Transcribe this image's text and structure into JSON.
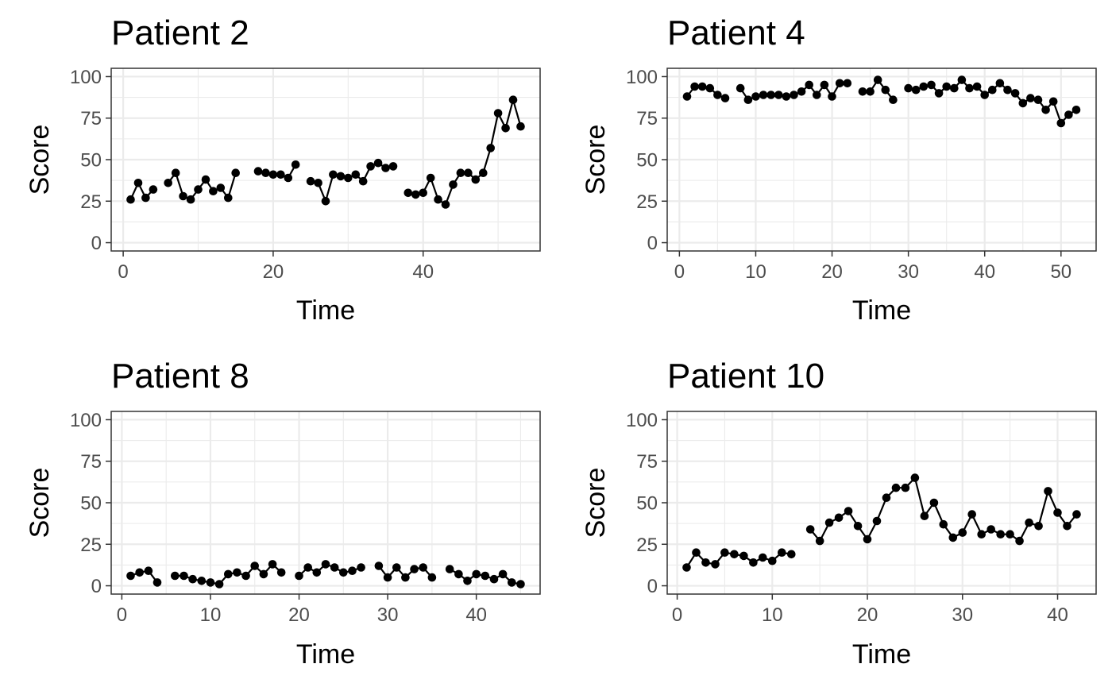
{
  "chart_data": [
    {
      "type": "line",
      "title": "Patient 2",
      "xlabel": "Time",
      "ylabel": "Score",
      "xlim": [
        -1.6,
        55.6
      ],
      "ylim": [
        -5,
        105
      ],
      "xticks": [
        0,
        20,
        40
      ],
      "xtick_labels": [
        "0",
        "20",
        "40"
      ],
      "xminor": [
        10,
        30,
        50
      ],
      "yticks": [
        0,
        25,
        50,
        75,
        100
      ],
      "ytick_labels": [
        "0",
        "25",
        "50",
        "75",
        "100"
      ],
      "yminor": [
        12.5,
        37.5,
        62.5,
        87.5
      ],
      "grid": true,
      "series": [
        {
          "points": [
            [
              1,
              26
            ],
            [
              2,
              36
            ],
            [
              3,
              27
            ],
            [
              4,
              32
            ],
            [
              5,
              null
            ],
            [
              6,
              36
            ],
            [
              7,
              42
            ],
            [
              8,
              28
            ],
            [
              9,
              26
            ],
            [
              10,
              32
            ],
            [
              11,
              38
            ],
            [
              12,
              31
            ],
            [
              13,
              33
            ],
            [
              14,
              27
            ],
            [
              15,
              42
            ],
            [
              16,
              null
            ],
            [
              17,
              null
            ],
            [
              18,
              43
            ],
            [
              19,
              42
            ],
            [
              20,
              41
            ],
            [
              21,
              41
            ],
            [
              22,
              39
            ],
            [
              23,
              47
            ],
            [
              24,
              null
            ],
            [
              25,
              37
            ],
            [
              26,
              36
            ],
            [
              27,
              25
            ],
            [
              28,
              41
            ],
            [
              29,
              40
            ],
            [
              30,
              39
            ],
            [
              31,
              41
            ],
            [
              32,
              37
            ],
            [
              33,
              46
            ],
            [
              34,
              48
            ],
            [
              35,
              45
            ],
            [
              36,
              46
            ],
            [
              37,
              null
            ],
            [
              38,
              30
            ],
            [
              39,
              29
            ],
            [
              40,
              30
            ],
            [
              41,
              39
            ],
            [
              42,
              26
            ],
            [
              43,
              23
            ],
            [
              44,
              35
            ],
            [
              45,
              42
            ],
            [
              46,
              42
            ],
            [
              47,
              38
            ],
            [
              48,
              42
            ],
            [
              49,
              57
            ],
            [
              50,
              78
            ],
            [
              51,
              69
            ],
            [
              52,
              86
            ],
            [
              53,
              70
            ]
          ]
        }
      ]
    },
    {
      "type": "line",
      "title": "Patient 4",
      "xlabel": "Time",
      "ylabel": "Score",
      "xlim": [
        -1.6,
        54.6
      ],
      "ylim": [
        -5,
        105
      ],
      "xticks": [
        0,
        10,
        20,
        30,
        40,
        50
      ],
      "xtick_labels": [
        "0",
        "10",
        "20",
        "30",
        "40",
        "50"
      ],
      "xminor": [
        5,
        15,
        25,
        35,
        45
      ],
      "yticks": [
        0,
        25,
        50,
        75,
        100
      ],
      "ytick_labels": [
        "0",
        "25",
        "50",
        "75",
        "100"
      ],
      "yminor": [
        12.5,
        37.5,
        62.5,
        87.5
      ],
      "grid": true,
      "series": [
        {
          "points": [
            [
              1,
              88
            ],
            [
              2,
              94
            ],
            [
              3,
              94
            ],
            [
              4,
              93
            ],
            [
              5,
              89
            ],
            [
              6,
              87
            ],
            [
              7,
              null
            ],
            [
              8,
              93
            ],
            [
              9,
              86
            ],
            [
              10,
              88
            ],
            [
              11,
              89
            ],
            [
              12,
              89
            ],
            [
              13,
              89
            ],
            [
              14,
              88
            ],
            [
              15,
              89
            ],
            [
              16,
              91
            ],
            [
              17,
              95
            ],
            [
              18,
              89
            ],
            [
              19,
              95
            ],
            [
              20,
              88
            ],
            [
              21,
              96
            ],
            [
              22,
              96
            ],
            [
              23,
              null
            ],
            [
              24,
              91
            ],
            [
              25,
              91
            ],
            [
              26,
              98
            ],
            [
              27,
              92
            ],
            [
              28,
              86
            ],
            [
              29,
              null
            ],
            [
              30,
              93
            ],
            [
              31,
              92
            ],
            [
              32,
              94
            ],
            [
              33,
              95
            ],
            [
              34,
              90
            ],
            [
              35,
              94
            ],
            [
              36,
              93
            ],
            [
              37,
              98
            ],
            [
              38,
              93
            ],
            [
              39,
              94
            ],
            [
              40,
              89
            ],
            [
              41,
              92
            ],
            [
              42,
              96
            ],
            [
              43,
              92
            ],
            [
              44,
              90
            ],
            [
              45,
              84
            ],
            [
              46,
              87
            ],
            [
              47,
              86
            ],
            [
              48,
              80
            ],
            [
              49,
              85
            ],
            [
              50,
              72
            ],
            [
              51,
              77
            ],
            [
              52,
              80
            ]
          ]
        }
      ]
    },
    {
      "type": "line",
      "title": "Patient 8",
      "xlabel": "Time",
      "ylabel": "Score",
      "xlim": [
        -1.2,
        47.2
      ],
      "ylim": [
        -5,
        105
      ],
      "xticks": [
        0,
        10,
        20,
        30,
        40
      ],
      "xtick_labels": [
        "0",
        "10",
        "20",
        "30",
        "40"
      ],
      "xminor": [
        5,
        15,
        25,
        35,
        45
      ],
      "yticks": [
        0,
        25,
        50,
        75,
        100
      ],
      "ytick_labels": [
        "0",
        "25",
        "50",
        "75",
        "100"
      ],
      "yminor": [
        12.5,
        37.5,
        62.5,
        87.5
      ],
      "grid": true,
      "series": [
        {
          "points": [
            [
              1,
              6
            ],
            [
              2,
              8
            ],
            [
              3,
              9
            ],
            [
              4,
              2
            ],
            [
              5,
              null
            ],
            [
              6,
              6
            ],
            [
              7,
              6
            ],
            [
              8,
              4
            ],
            [
              9,
              3
            ],
            [
              10,
              2
            ],
            [
              11,
              1
            ],
            [
              12,
              7
            ],
            [
              13,
              8
            ],
            [
              14,
              6
            ],
            [
              15,
              12
            ],
            [
              16,
              7
            ],
            [
              17,
              13
            ],
            [
              18,
              8
            ],
            [
              19,
              null
            ],
            [
              20,
              6
            ],
            [
              21,
              11
            ],
            [
              22,
              8
            ],
            [
              23,
              13
            ],
            [
              24,
              11
            ],
            [
              25,
              8
            ],
            [
              26,
              9
            ],
            [
              27,
              11
            ],
            [
              28,
              null
            ],
            [
              29,
              12
            ],
            [
              30,
              5
            ],
            [
              31,
              11
            ],
            [
              32,
              5
            ],
            [
              33,
              10
            ],
            [
              34,
              11
            ],
            [
              35,
              5
            ],
            [
              36,
              null
            ],
            [
              37,
              10
            ],
            [
              38,
              7
            ],
            [
              39,
              3
            ],
            [
              40,
              7
            ],
            [
              41,
              6
            ],
            [
              42,
              4
            ],
            [
              43,
              7
            ],
            [
              44,
              2
            ],
            [
              45,
              1
            ]
          ]
        }
      ]
    },
    {
      "type": "line",
      "title": "Patient 10",
      "xlabel": "Time",
      "ylabel": "Score",
      "xlim": [
        -1.05,
        44.05
      ],
      "ylim": [
        -5,
        105
      ],
      "xticks": [
        0,
        10,
        20,
        30,
        40
      ],
      "xtick_labels": [
        "0",
        "10",
        "20",
        "30",
        "40"
      ],
      "xminor": [
        5,
        15,
        25,
        35
      ],
      "yticks": [
        0,
        25,
        50,
        75,
        100
      ],
      "ytick_labels": [
        "0",
        "25",
        "50",
        "75",
        "100"
      ],
      "yminor": [
        12.5,
        37.5,
        62.5,
        87.5
      ],
      "grid": true,
      "series": [
        {
          "points": [
            [
              1,
              11
            ],
            [
              2,
              20
            ],
            [
              3,
              14
            ],
            [
              4,
              13
            ],
            [
              5,
              20
            ],
            [
              6,
              19
            ],
            [
              7,
              18
            ],
            [
              8,
              14
            ],
            [
              9,
              17
            ],
            [
              10,
              15
            ],
            [
              11,
              20
            ],
            [
              12,
              19
            ],
            [
              13,
              null
            ],
            [
              14,
              34
            ],
            [
              15,
              27
            ],
            [
              16,
              38
            ],
            [
              17,
              41
            ],
            [
              18,
              45
            ],
            [
              19,
              36
            ],
            [
              20,
              28
            ],
            [
              21,
              39
            ],
            [
              22,
              53
            ],
            [
              23,
              59
            ],
            [
              24,
              59
            ],
            [
              25,
              65
            ],
            [
              26,
              42
            ],
            [
              27,
              50
            ],
            [
              28,
              37
            ],
            [
              29,
              29
            ],
            [
              30,
              32
            ],
            [
              31,
              43
            ],
            [
              32,
              31
            ],
            [
              33,
              34
            ],
            [
              34,
              31
            ],
            [
              35,
              31
            ],
            [
              36,
              27
            ],
            [
              37,
              38
            ],
            [
              38,
              36
            ],
            [
              39,
              57
            ],
            [
              40,
              44
            ],
            [
              41,
              36
            ],
            [
              42,
              43
            ]
          ]
        }
      ]
    }
  ]
}
